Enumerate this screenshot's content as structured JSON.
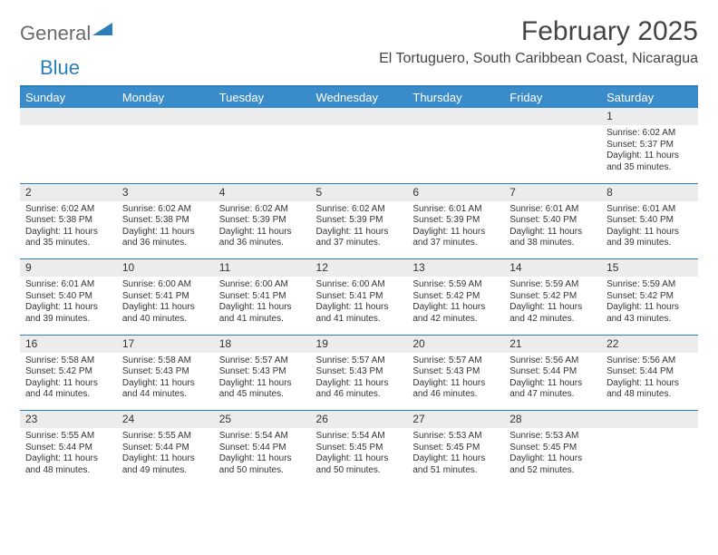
{
  "branding": {
    "logo_word1": "General",
    "logo_word2": "Blue",
    "logo_color_gray": "#6b6b6b",
    "logo_color_blue": "#2c7fb8"
  },
  "header": {
    "month_title": "February 2025",
    "location": "El Tortuguero, South Caribbean Coast, Nicaragua"
  },
  "colors": {
    "header_bar": "#3a8bc9",
    "divider": "#2c7fb8",
    "row_shade": "#ececec",
    "row_border": "#2c7fb8",
    "text": "#333333",
    "background": "#ffffff"
  },
  "typography": {
    "title_fontsize": 30,
    "location_fontsize": 16,
    "weekday_fontsize": 13,
    "daynum_fontsize": 12,
    "detail_fontsize": 10
  },
  "calendar": {
    "weekdays": [
      "Sunday",
      "Monday",
      "Tuesday",
      "Wednesday",
      "Thursday",
      "Friday",
      "Saturday"
    ],
    "weeks": [
      [
        null,
        null,
        null,
        null,
        null,
        null,
        {
          "n": "1",
          "sunrise": "6:02 AM",
          "sunset": "5:37 PM",
          "daylight": "11 hours and 35 minutes."
        }
      ],
      [
        {
          "n": "2",
          "sunrise": "6:02 AM",
          "sunset": "5:38 PM",
          "daylight": "11 hours and 35 minutes."
        },
        {
          "n": "3",
          "sunrise": "6:02 AM",
          "sunset": "5:38 PM",
          "daylight": "11 hours and 36 minutes."
        },
        {
          "n": "4",
          "sunrise": "6:02 AM",
          "sunset": "5:39 PM",
          "daylight": "11 hours and 36 minutes."
        },
        {
          "n": "5",
          "sunrise": "6:02 AM",
          "sunset": "5:39 PM",
          "daylight": "11 hours and 37 minutes."
        },
        {
          "n": "6",
          "sunrise": "6:01 AM",
          "sunset": "5:39 PM",
          "daylight": "11 hours and 37 minutes."
        },
        {
          "n": "7",
          "sunrise": "6:01 AM",
          "sunset": "5:40 PM",
          "daylight": "11 hours and 38 minutes."
        },
        {
          "n": "8",
          "sunrise": "6:01 AM",
          "sunset": "5:40 PM",
          "daylight": "11 hours and 39 minutes."
        }
      ],
      [
        {
          "n": "9",
          "sunrise": "6:01 AM",
          "sunset": "5:40 PM",
          "daylight": "11 hours and 39 minutes."
        },
        {
          "n": "10",
          "sunrise": "6:00 AM",
          "sunset": "5:41 PM",
          "daylight": "11 hours and 40 minutes."
        },
        {
          "n": "11",
          "sunrise": "6:00 AM",
          "sunset": "5:41 PM",
          "daylight": "11 hours and 41 minutes."
        },
        {
          "n": "12",
          "sunrise": "6:00 AM",
          "sunset": "5:41 PM",
          "daylight": "11 hours and 41 minutes."
        },
        {
          "n": "13",
          "sunrise": "5:59 AM",
          "sunset": "5:42 PM",
          "daylight": "11 hours and 42 minutes."
        },
        {
          "n": "14",
          "sunrise": "5:59 AM",
          "sunset": "5:42 PM",
          "daylight": "11 hours and 42 minutes."
        },
        {
          "n": "15",
          "sunrise": "5:59 AM",
          "sunset": "5:42 PM",
          "daylight": "11 hours and 43 minutes."
        }
      ],
      [
        {
          "n": "16",
          "sunrise": "5:58 AM",
          "sunset": "5:42 PM",
          "daylight": "11 hours and 44 minutes."
        },
        {
          "n": "17",
          "sunrise": "5:58 AM",
          "sunset": "5:43 PM",
          "daylight": "11 hours and 44 minutes."
        },
        {
          "n": "18",
          "sunrise": "5:57 AM",
          "sunset": "5:43 PM",
          "daylight": "11 hours and 45 minutes."
        },
        {
          "n": "19",
          "sunrise": "5:57 AM",
          "sunset": "5:43 PM",
          "daylight": "11 hours and 46 minutes."
        },
        {
          "n": "20",
          "sunrise": "5:57 AM",
          "sunset": "5:43 PM",
          "daylight": "11 hours and 46 minutes."
        },
        {
          "n": "21",
          "sunrise": "5:56 AM",
          "sunset": "5:44 PM",
          "daylight": "11 hours and 47 minutes."
        },
        {
          "n": "22",
          "sunrise": "5:56 AM",
          "sunset": "5:44 PM",
          "daylight": "11 hours and 48 minutes."
        }
      ],
      [
        {
          "n": "23",
          "sunrise": "5:55 AM",
          "sunset": "5:44 PM",
          "daylight": "11 hours and 48 minutes."
        },
        {
          "n": "24",
          "sunrise": "5:55 AM",
          "sunset": "5:44 PM",
          "daylight": "11 hours and 49 minutes."
        },
        {
          "n": "25",
          "sunrise": "5:54 AM",
          "sunset": "5:44 PM",
          "daylight": "11 hours and 50 minutes."
        },
        {
          "n": "26",
          "sunrise": "5:54 AM",
          "sunset": "5:45 PM",
          "daylight": "11 hours and 50 minutes."
        },
        {
          "n": "27",
          "sunrise": "5:53 AM",
          "sunset": "5:45 PM",
          "daylight": "11 hours and 51 minutes."
        },
        {
          "n": "28",
          "sunrise": "5:53 AM",
          "sunset": "5:45 PM",
          "daylight": "11 hours and 52 minutes."
        },
        null
      ]
    ],
    "labels": {
      "sunrise": "Sunrise:",
      "sunset": "Sunset:",
      "daylight": "Daylight:"
    }
  }
}
